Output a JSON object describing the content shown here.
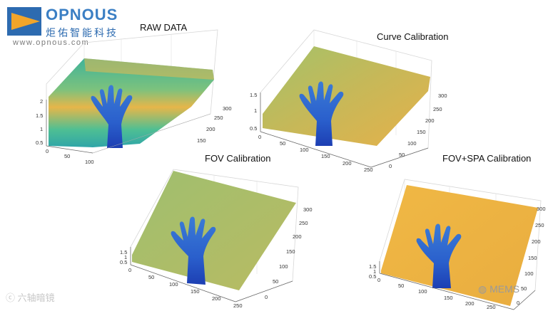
{
  "logo": {
    "name": "OPNOUS",
    "chinese": "炬佑智能科技",
    "url": "www.opnous.com",
    "colors": {
      "brand_blue": "#3b7fc4",
      "brand_orange": "#f2a52a"
    }
  },
  "panels": [
    {
      "title": "RAW DATA",
      "z_ticks": [
        "2",
        "1.5",
        "1",
        "0.5"
      ],
      "x_ticks": [
        "0",
        "50",
        "100"
      ],
      "y_ticks": [
        "300",
        "250",
        "200",
        "150"
      ]
    },
    {
      "title": "Curve Calibration",
      "z_ticks": [
        "1.5",
        "1",
        "0.5"
      ],
      "x_ticks": [
        "0",
        "50",
        "100",
        "150",
        "200",
        "250"
      ],
      "y_ticks": [
        "300",
        "250",
        "200",
        "150",
        "100",
        "50",
        "0"
      ]
    },
    {
      "title": "FOV Calibration",
      "z_ticks": [
        "1.5",
        "1",
        "0.5"
      ],
      "x_ticks": [
        "0",
        "50",
        "100",
        "150",
        "200",
        "250"
      ],
      "y_ticks": [
        "300",
        "250",
        "200",
        "150",
        "100",
        "50",
        "0"
      ]
    },
    {
      "title": "FOV+SPA Calibration",
      "z_ticks": [
        "1.5",
        "1",
        "0.5"
      ],
      "x_ticks": [
        "0",
        "50",
        "100",
        "150",
        "200",
        "250"
      ],
      "y_ticks": [
        "300",
        "250",
        "200",
        "150",
        "100",
        "50",
        "0"
      ]
    }
  ],
  "watermarks": {
    "left": "六轴暗镜",
    "right": "MEMS"
  }
}
